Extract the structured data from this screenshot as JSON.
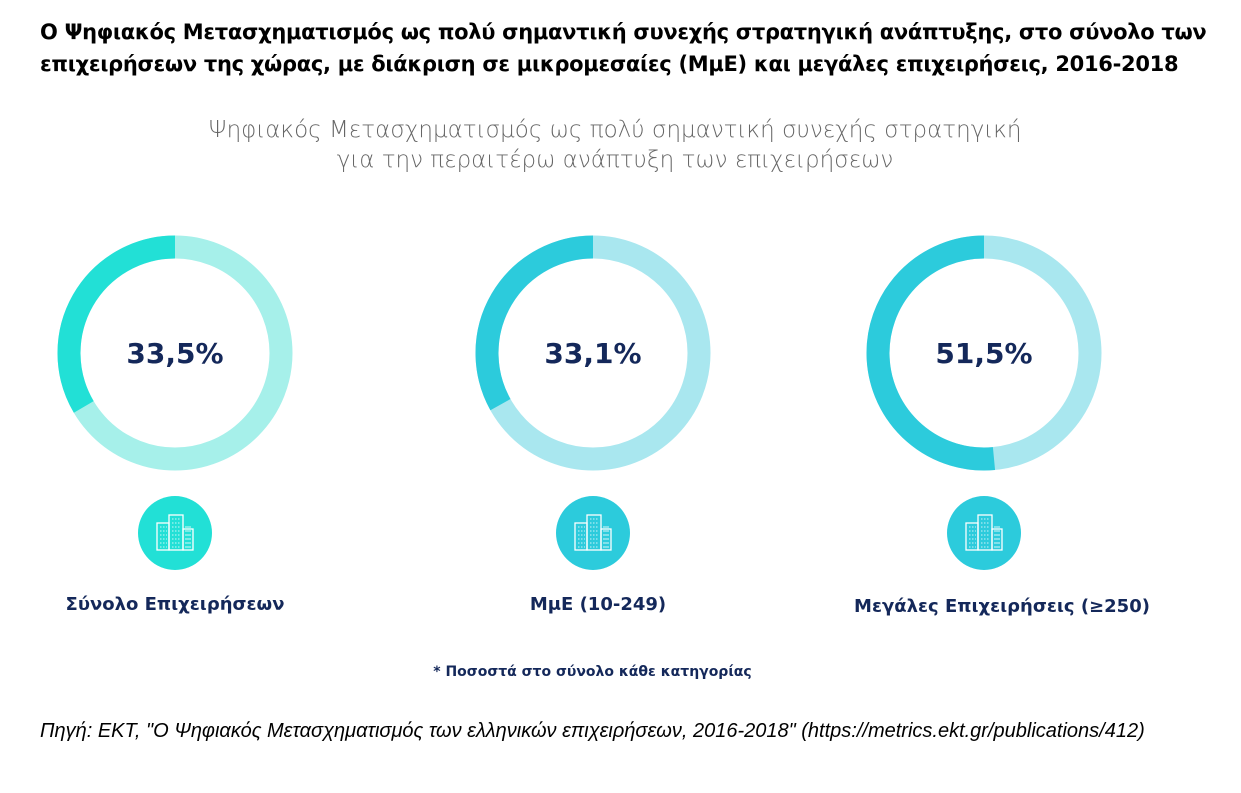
{
  "title": "Ο Ψηφιακός Μετασχηματισμός ως πολύ σημαντική συνεχής στρατηγική ανάπτυξης, στο σύνολο των επιχειρήσεων της χώρας, με διάκριση σε μικρομεσαίες (ΜμΕ) και μεγάλες επιχειρήσεις, 2016-2018",
  "chart_data": {
    "type": "pie",
    "subtitle_line1": "Ψηφιακός Μετασχηματισμός ως πολύ σημαντική συνεχής στρατηγική",
    "subtitle_line2": "για την περαιτέρω ανάπτυξη των επιχειρήσεων",
    "items": [
      {
        "label": "Σύνολο Επιχειρήσεων",
        "value": 33.5,
        "value_label": "33,5%",
        "color": "#22e0d6",
        "track_color": "#a6f0ea",
        "icon": "buildings-icon"
      },
      {
        "label": "ΜμΕ (10-249)",
        "value": 33.1,
        "value_label": "33,1%",
        "color": "#2ccbdc",
        "track_color": "#a9e7ef",
        "icon": "buildings-icon"
      },
      {
        "label": "Μεγάλες Επιχειρήσεις (≥250)",
        "value": 51.5,
        "value_label": "51,5%",
        "color": "#2ccbdc",
        "track_color": "#a9e7ef",
        "icon": "buildings-icon"
      }
    ],
    "note": "* Ποσοστά στο σύνολο κάθε κατηγορίας",
    "value_color": "#14285a"
  },
  "source": "Πηγή: ΕΚΤ, \"Ο Ψηφιακός Μετασχηματισμός των ελληνικών επιχειρήσεων, 2016-2018\" (https://metrics.ekt.gr/publications/412)"
}
